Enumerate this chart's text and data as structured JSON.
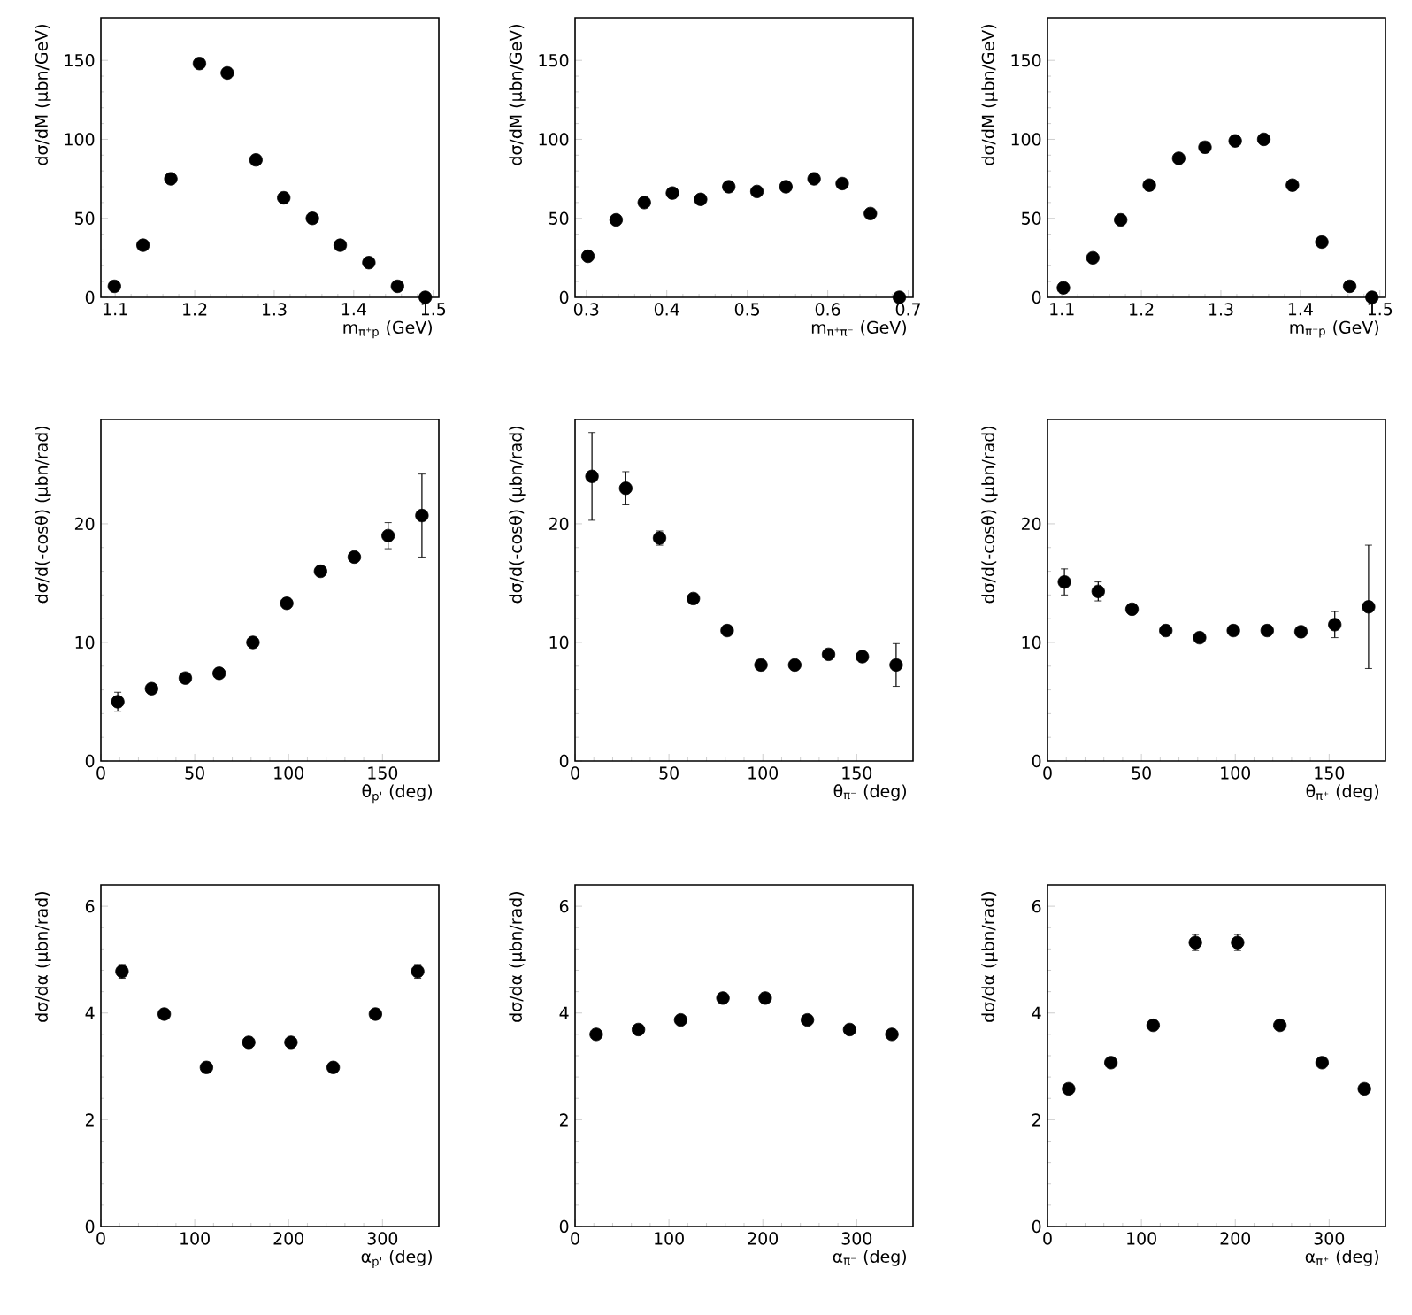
{
  "chart_data": [
    {
      "type": "scatter",
      "marker": "circle",
      "color": "#000000",
      "xlabel": "m$_{π⁺p}$ (GeV)",
      "ylabel": "dσ/dM (μbn/GeV)",
      "xlim": [
        1.082,
        1.507
      ],
      "ylim": [
        0,
        177
      ],
      "xticks": [
        1.1,
        1.2,
        1.3,
        1.4,
        1.5
      ],
      "yticks": [
        0,
        50,
        100,
        150
      ],
      "x": [
        1.099,
        1.135,
        1.17,
        1.206,
        1.241,
        1.277,
        1.312,
        1.348,
        1.383,
        1.419,
        1.455,
        1.49
      ],
      "values": [
        7,
        33,
        75,
        148,
        142,
        87,
        63,
        50,
        33,
        22,
        7,
        0
      ]
    },
    {
      "type": "scatter",
      "marker": "circle",
      "color": "#000000",
      "xlabel": "m$_{π⁺π⁻}$ (GeV)",
      "ylabel": "dσ/dM (μbn/GeV)",
      "xlim": [
        0.286,
        0.706
      ],
      "ylim": [
        0,
        177
      ],
      "xticks": [
        0.3,
        0.4,
        0.5,
        0.6,
        0.7
      ],
      "yticks": [
        0,
        50,
        100,
        150
      ],
      "x": [
        0.302,
        0.337,
        0.372,
        0.407,
        0.442,
        0.477,
        0.512,
        0.548,
        0.583,
        0.618,
        0.653,
        0.689
      ],
      "values": [
        26,
        49,
        60,
        66,
        62,
        70,
        67,
        70,
        75,
        72,
        53,
        0
      ]
    },
    {
      "type": "scatter",
      "marker": "circle",
      "color": "#000000",
      "xlabel": "m$_{π⁻p}$ (GeV)",
      "ylabel": "dσ/dM (μbn/GeV)",
      "xlim": [
        1.082,
        1.507
      ],
      "ylim": [
        0,
        177
      ],
      "xticks": [
        1.1,
        1.2,
        1.3,
        1.4,
        1.5
      ],
      "yticks": [
        0,
        50,
        100,
        150
      ],
      "x": [
        1.102,
        1.139,
        1.174,
        1.21,
        1.247,
        1.28,
        1.318,
        1.354,
        1.39,
        1.427,
        1.462,
        1.49
      ],
      "values": [
        6,
        25,
        49,
        71,
        88,
        95,
        99,
        100,
        71,
        35,
        7,
        0
      ]
    },
    {
      "type": "scatter",
      "marker": "circle",
      "color": "#000000",
      "xlabel": "θ$_{p'}$ (deg)",
      "ylabel": "dσ/d(-cosθ) (μbn/rad)",
      "xlim": [
        0,
        180
      ],
      "ylim": [
        0,
        28.8
      ],
      "xticks": [
        0,
        50,
        100,
        150
      ],
      "yticks": [
        0,
        10,
        20
      ],
      "x": [
        9,
        27,
        45,
        63,
        81,
        99,
        117,
        135,
        153,
        171
      ],
      "values": [
        5.0,
        6.1,
        7.0,
        7.4,
        10.0,
        13.3,
        16.0,
        17.2,
        19.0,
        20.7
      ],
      "errors": [
        0.8,
        null,
        null,
        null,
        null,
        null,
        null,
        null,
        1.1,
        3.5
      ]
    },
    {
      "type": "scatter",
      "marker": "circle",
      "color": "#000000",
      "xlabel": "θ$_{π⁻}$ (deg)",
      "ylabel": "dσ/d(-cosθ) (μbn/rad)",
      "xlim": [
        0,
        180
      ],
      "ylim": [
        0,
        28.8
      ],
      "xticks": [
        0,
        50,
        100,
        150
      ],
      "yticks": [
        0,
        10,
        20
      ],
      "x": [
        9,
        27,
        45,
        63,
        81,
        99,
        117,
        135,
        153,
        171
      ],
      "values": [
        24.0,
        23.0,
        18.8,
        13.7,
        11.0,
        8.1,
        8.1,
        9.0,
        8.8,
        8.1
      ],
      "errors": [
        3.7,
        1.4,
        0.6,
        null,
        null,
        null,
        null,
        null,
        null,
        1.8
      ]
    },
    {
      "type": "scatter",
      "marker": "circle",
      "color": "#000000",
      "xlabel": "θ$_{π⁺}$ (deg)",
      "ylabel": "dσ/d(-cosθ) (μbn/rad)",
      "xlim": [
        0,
        180
      ],
      "ylim": [
        0,
        28.8
      ],
      "xticks": [
        0,
        50,
        100,
        150
      ],
      "yticks": [
        0,
        10,
        20
      ],
      "x": [
        9,
        27,
        45,
        63,
        81,
        99,
        117,
        135,
        153,
        171
      ],
      "values": [
        15.1,
        14.3,
        12.8,
        11.0,
        10.4,
        11.0,
        11.0,
        10.9,
        11.5,
        13.0
      ],
      "errors": [
        1.1,
        0.8,
        null,
        null,
        null,
        null,
        null,
        null,
        1.1,
        5.2
      ]
    },
    {
      "type": "scatter",
      "marker": "circle",
      "color": "#000000",
      "xlabel": "α$_{p'}$ (deg)",
      "ylabel": "dσ/dα (μbn/rad)",
      "xlim": [
        0,
        360
      ],
      "ylim": [
        0,
        6.4
      ],
      "xticks": [
        0,
        100,
        200,
        300
      ],
      "yticks": [
        0,
        2,
        4,
        6
      ],
      "x": [
        22.5,
        67.5,
        112.5,
        157.5,
        202.5,
        247.5,
        292.5,
        337.5
      ],
      "values": [
        4.78,
        3.98,
        2.98,
        3.45,
        3.45,
        2.98,
        3.98,
        4.78
      ],
      "errors": [
        0.13,
        null,
        null,
        null,
        null,
        null,
        null,
        0.13
      ]
    },
    {
      "type": "scatter",
      "marker": "circle",
      "color": "#000000",
      "xlabel": "α$_{π⁻}$ (deg)",
      "ylabel": "dσ/dα (μbn/rad)",
      "xlim": [
        0,
        360
      ],
      "ylim": [
        0,
        6.4
      ],
      "xticks": [
        0,
        100,
        200,
        300
      ],
      "yticks": [
        0,
        2,
        4,
        6
      ],
      "x": [
        22.5,
        67.5,
        112.5,
        157.5,
        202.5,
        247.5,
        292.5,
        337.5
      ],
      "values": [
        3.6,
        3.69,
        3.87,
        4.28,
        4.28,
        3.87,
        3.69,
        3.6
      ]
    },
    {
      "type": "scatter",
      "marker": "circle",
      "color": "#000000",
      "xlabel": "α$_{π⁺}$ (deg)",
      "ylabel": "dσ/dα (μbn/rad)",
      "xlim": [
        0,
        360
      ],
      "ylim": [
        0,
        6.4
      ],
      "xticks": [
        0,
        100,
        200,
        300
      ],
      "yticks": [
        0,
        2,
        4,
        6
      ],
      "x": [
        22.5,
        67.5,
        112.5,
        157.5,
        202.5,
        247.5,
        292.5,
        337.5
      ],
      "values": [
        2.58,
        3.07,
        3.77,
        5.32,
        5.32,
        3.77,
        3.07,
        2.58
      ],
      "errors": [
        null,
        null,
        null,
        0.15,
        0.15,
        null,
        null,
        null
      ]
    }
  ]
}
